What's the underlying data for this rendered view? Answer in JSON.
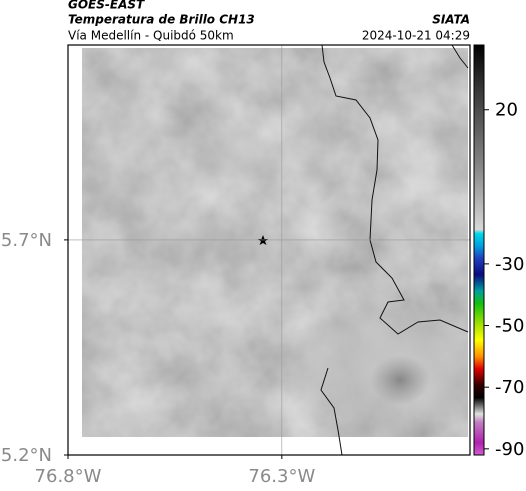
{
  "header": {
    "title": "GOES-EAST",
    "subtitle": "Temperatura de Brillo CH13",
    "route": "Vía Medellín - Quibdó 50km",
    "source": "SIATA",
    "timestamp": "2024-10-21 04:29"
  },
  "map": {
    "lonlim": [
      -76.8,
      -75.86
    ],
    "latlim": [
      5.2,
      6.153
    ],
    "lon_ticks": [
      {
        "value": -76.8,
        "label": "76.8°W"
      },
      {
        "value": -76.3,
        "label": "76.3°W"
      }
    ],
    "lat_ticks": [
      {
        "value": 5.7,
        "label": "5.7°N"
      },
      {
        "value": 5.2,
        "label": "5.2°N"
      }
    ],
    "grid": true
  },
  "colorbar": {
    "lim": [
      41,
      -92
    ],
    "ticks": [
      20,
      -30,
      -50,
      -70,
      -90
    ]
  }
}
